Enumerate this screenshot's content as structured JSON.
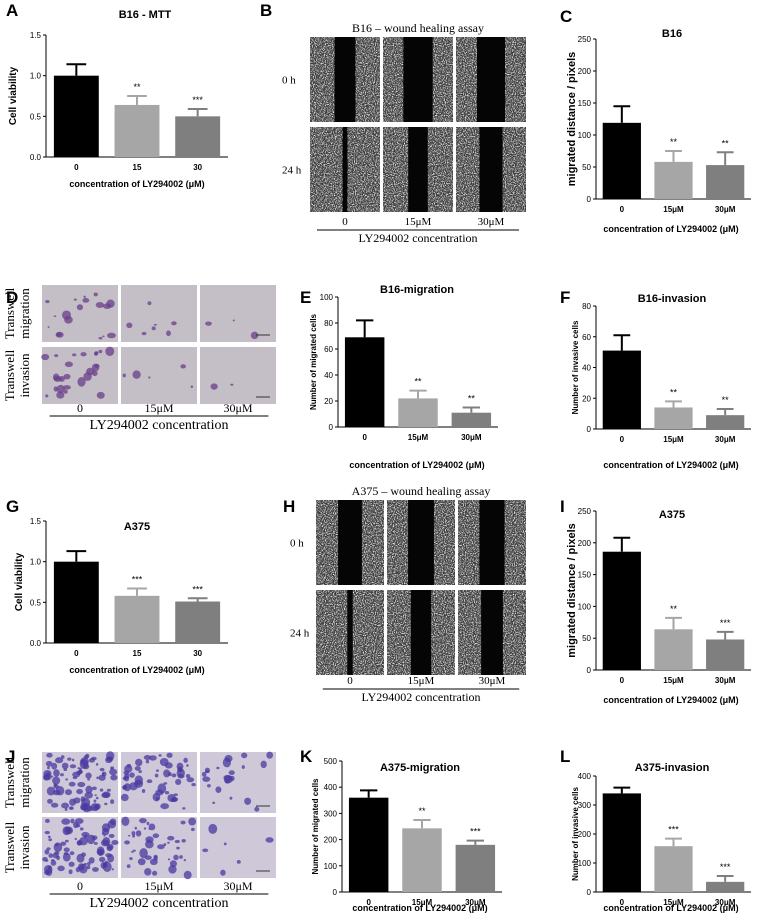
{
  "chart_data": [
    {
      "id": "A",
      "type": "bar",
      "title": "B16 - MTT",
      "ylabel": "Cell viability",
      "xlabel": "concentration of LY294002 (μM)",
      "categories": [
        "0",
        "15",
        "30"
      ],
      "values": [
        1.0,
        0.64,
        0.5
      ],
      "errors": [
        0.14,
        0.11,
        0.09
      ],
      "significance": [
        "",
        "**",
        "***"
      ],
      "ylim": [
        0,
        1.5
      ],
      "yticks": [
        "0.0",
        "0.5",
        "1.0",
        "1.5"
      ],
      "colors": [
        "#000000",
        "#a6a6a6",
        "#7f7f7f"
      ]
    },
    {
      "id": "C",
      "type": "bar",
      "title": "B16",
      "ylabel": "migrated distance / pixels",
      "xlabel": "concentration of LY294002 (μM)",
      "categories": [
        "0",
        "15μM",
        "30μM"
      ],
      "values": [
        119,
        58,
        53
      ],
      "errors": [
        26,
        17,
        20
      ],
      "significance": [
        "",
        "**",
        "**"
      ],
      "ylim": [
        0,
        250
      ],
      "yticks": [
        "0",
        "50",
        "100",
        "150",
        "200",
        "250"
      ],
      "colors": [
        "#000000",
        "#a6a6a6",
        "#7f7f7f"
      ]
    },
    {
      "id": "E",
      "type": "bar",
      "title": "B16-migration",
      "ylabel": "Number of migrated cells",
      "xlabel": "concentration of LY294002 (μM)",
      "categories": [
        "0",
        "15μM",
        "30μM"
      ],
      "values": [
        69,
        22,
        11
      ],
      "errors": [
        13,
        6,
        4
      ],
      "significance": [
        "",
        "**",
        "**"
      ],
      "ylim": [
        0,
        100
      ],
      "yticks": [
        "0",
        "20",
        "40",
        "60",
        "80",
        "100"
      ],
      "colors": [
        "#000000",
        "#a6a6a6",
        "#7f7f7f"
      ]
    },
    {
      "id": "F",
      "type": "bar",
      "title": "B16-invasion",
      "ylabel": "Number of invasive cells",
      "xlabel": "concentration of LY294002 (μM)",
      "categories": [
        "0",
        "15μM",
        "30μM"
      ],
      "values": [
        51,
        14,
        9
      ],
      "errors": [
        10,
        4,
        4
      ],
      "significance": [
        "",
        "**",
        "**"
      ],
      "ylim": [
        0,
        80
      ],
      "yticks": [
        "0",
        "20",
        "40",
        "60",
        "80"
      ],
      "colors": [
        "#000000",
        "#a6a6a6",
        "#7f7f7f"
      ]
    },
    {
      "id": "G",
      "type": "bar",
      "title": "A375",
      "ylabel": "Cell viability",
      "xlabel": "concentration of LY294002 (μM)",
      "categories": [
        "0",
        "15",
        "30"
      ],
      "values": [
        1.0,
        0.58,
        0.51
      ],
      "errors": [
        0.13,
        0.09,
        0.04
      ],
      "significance": [
        "",
        "***",
        "***"
      ],
      "ylim": [
        0,
        1.5
      ],
      "yticks": [
        "0.0",
        "0.5",
        "1.0",
        "1.5"
      ],
      "colors": [
        "#000000",
        "#a6a6a6",
        "#7f7f7f"
      ]
    },
    {
      "id": "I",
      "type": "bar",
      "title": "A375",
      "ylabel": "migrated distance / pixels",
      "xlabel": "concentration of LY294002 (μM)",
      "categories": [
        "0",
        "15μM",
        "30μM"
      ],
      "values": [
        186,
        64,
        48
      ],
      "errors": [
        22,
        18,
        12
      ],
      "significance": [
        "",
        "**",
        "***"
      ],
      "ylim": [
        0,
        250
      ],
      "yticks": [
        "0",
        "50",
        "100",
        "150",
        "200",
        "250"
      ],
      "colors": [
        "#000000",
        "#a6a6a6",
        "#7f7f7f"
      ]
    },
    {
      "id": "K",
      "type": "bar",
      "title": "A375-migration",
      "ylabel": "Number of migrated cells",
      "xlabel": "concentration of LY294002 (μM)",
      "categories": [
        "0",
        "15μM",
        "30μM"
      ],
      "values": [
        360,
        243,
        180
      ],
      "errors": [
        28,
        32,
        16
      ],
      "significance": [
        "",
        "**",
        "***"
      ],
      "ylim": [
        0,
        500
      ],
      "yticks": [
        "0",
        "100",
        "200",
        "300",
        "400",
        "500"
      ],
      "colors": [
        "#000000",
        "#a6a6a6",
        "#7f7f7f"
      ]
    },
    {
      "id": "L",
      "type": "bar",
      "title": "A375-invasion",
      "ylabel": "Number of invasive cells",
      "xlabel": "concentration of LY294002 (μM)",
      "categories": [
        "0",
        "15μM",
        "30μM"
      ],
      "values": [
        340,
        158,
        35
      ],
      "errors": [
        20,
        26,
        20
      ],
      "significance": [
        "",
        "***",
        "***"
      ],
      "ylim": [
        0,
        400
      ],
      "yticks": [
        "0",
        "100",
        "200",
        "300",
        "400"
      ],
      "colors": [
        "#000000",
        "#a6a6a6",
        "#7f7f7f"
      ]
    }
  ],
  "image_panels": [
    {
      "id": "B",
      "kind": "wound",
      "title": "B16 – wound healing assay",
      "rows": [
        "0 h",
        "24 h"
      ],
      "cols": [
        "0",
        "15μM",
        "30μM"
      ],
      "xlabel": "LY294002 concentration",
      "gap": [
        [
          0.3,
          0.42,
          0.4
        ],
        [
          0.07,
          0.28,
          0.33
        ]
      ]
    },
    {
      "id": "D",
      "kind": "transwell",
      "rows": [
        "Transwell migration",
        "Transwell invasion"
      ],
      "cols": [
        "0",
        "15μM",
        "30μM"
      ],
      "xlabel": "LY294002 concentration",
      "tint": "#c4bfc6",
      "stain": "#6a3d8a",
      "density": [
        [
          18,
          7,
          3
        ],
        [
          26,
          5,
          2
        ]
      ]
    },
    {
      "id": "H",
      "kind": "wound",
      "title": "A375 – wound healing assay",
      "rows": [
        "0 h",
        "24 h"
      ],
      "cols": [
        "0",
        "15μM",
        "30μM"
      ],
      "xlabel": "LY294002 concentration",
      "gap": [
        [
          0.35,
          0.38,
          0.37
        ],
        [
          0.08,
          0.3,
          0.32
        ]
      ]
    },
    {
      "id": "J",
      "kind": "transwell",
      "rows": [
        "Transwell migration",
        "Transwell invasion"
      ],
      "cols": [
        "0",
        "15μM",
        "30μM"
      ],
      "xlabel": "LY294002 concentration",
      "tint": "#cfc8d8",
      "stain": "#4a3aa0",
      "density": [
        [
          90,
          55,
          22
        ],
        [
          80,
          45,
          6
        ]
      ]
    }
  ]
}
